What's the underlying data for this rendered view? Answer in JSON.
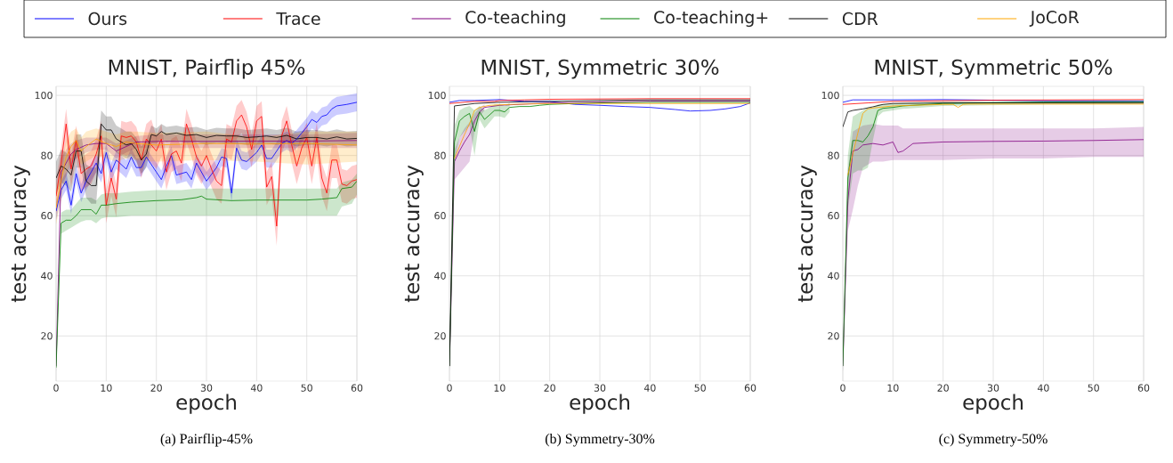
{
  "chart_data": [
    {
      "type": "line",
      "title": "MNIST, Pairflip 45%",
      "xlabel": "epoch",
      "ylabel": "test accuracy",
      "annotations": [
        "(a) Pairflip-45%"
      ],
      "xlim": [
        0,
        60
      ],
      "ylim": [
        5,
        103
      ],
      "xticks": [
        0,
        10,
        20,
        30,
        40,
        50,
        60
      ],
      "yticks": [
        20,
        40,
        60,
        80,
        100
      ],
      "grid": true,
      "legend": "top",
      "series": [
        {
          "name": "Ours",
          "color": "#0000ff",
          "x": [
            0,
            1,
            2,
            3,
            4,
            5,
            6,
            8,
            9,
            10,
            11,
            12,
            14,
            15,
            16,
            17,
            18,
            20,
            21,
            22,
            23,
            24,
            26,
            27,
            28,
            30,
            32,
            33,
            34,
            35,
            36,
            37,
            38,
            40,
            41,
            42,
            43,
            45,
            46,
            47,
            48,
            49,
            50,
            51,
            52,
            53,
            54,
            55,
            56,
            58,
            60
          ],
          "values": [
            61.5,
            68.5,
            71.5,
            63.5,
            74,
            67.5,
            71.5,
            77.5,
            74,
            81,
            74.5,
            78.5,
            75.5,
            79.5,
            76,
            76,
            79.5,
            74.5,
            72,
            76.5,
            80,
            73.5,
            74.5,
            72,
            77.5,
            71.5,
            76,
            79.5,
            79,
            67.5,
            82.5,
            78.5,
            78,
            81,
            83.5,
            79,
            79,
            84,
            85,
            84,
            85.5,
            87.5,
            89.5,
            92,
            91,
            93,
            93.5,
            95.5,
            96.5,
            97,
            97.7
          ],
          "lower": [
            58.5,
            65.5,
            68.5,
            60.5,
            71,
            64.5,
            68.5,
            74.5,
            71,
            78,
            71.5,
            75.5,
            72.5,
            76.5,
            73,
            73,
            76.5,
            71.5,
            69,
            73.5,
            77,
            70.5,
            71.5,
            69,
            74.5,
            68.5,
            73,
            76.5,
            76,
            64.5,
            79.5,
            75.5,
            75,
            78,
            80.5,
            76,
            76,
            81,
            82,
            81,
            82.5,
            84.5,
            86.5,
            89,
            88,
            90,
            90.5,
            92.5,
            93.5,
            94,
            94.7
          ],
          "upper": [
            64.5,
            71.5,
            74.5,
            66.5,
            77,
            70.5,
            74.5,
            80.5,
            77,
            84,
            77.5,
            81.5,
            78.5,
            82.5,
            79,
            79,
            82.5,
            77.5,
            75,
            79.5,
            83,
            76.5,
            77.5,
            75,
            80.5,
            74.5,
            79,
            82.5,
            82,
            70.5,
            85.5,
            81.5,
            81,
            84,
            86.5,
            82,
            82,
            87,
            88,
            87,
            88.5,
            90.5,
            92.5,
            95,
            94,
            96,
            96.5,
            98.5,
            99.5,
            100,
            100.7
          ]
        },
        {
          "name": "Trace",
          "color": "#ff0000",
          "x": [
            0,
            1,
            2,
            3,
            4,
            5,
            6,
            7,
            8,
            9,
            10,
            11,
            12,
            13,
            14,
            15,
            16,
            17,
            18,
            19,
            20,
            21,
            22,
            23,
            24,
            25,
            26,
            27,
            28,
            29,
            30,
            31,
            32,
            33,
            34,
            35,
            36,
            37,
            38,
            39,
            40,
            41,
            42,
            43,
            44,
            45,
            46,
            47,
            48,
            49,
            50,
            51,
            52,
            53,
            54,
            55,
            56,
            57,
            58,
            59,
            60
          ],
          "values": [
            66.5,
            77.5,
            90.5,
            75.5,
            85,
            74,
            75.5,
            76.5,
            80.5,
            86.5,
            63.5,
            72.5,
            65.5,
            86.5,
            86,
            86.5,
            84.5,
            78.5,
            85.5,
            83.5,
            81.5,
            85.5,
            74.5,
            80.5,
            81.5,
            77.5,
            90.5,
            85.5,
            79.5,
            76.5,
            80,
            75.5,
            71.5,
            70,
            85.5,
            84.5,
            91.5,
            93.5,
            89.5,
            82,
            91.5,
            93,
            69.5,
            73,
            56.5,
            86.5,
            91.5,
            83.5,
            76.5,
            82.5,
            86,
            76.5,
            86,
            72.5,
            67.5,
            78.5,
            78.5,
            70.5,
            70,
            71.5,
            72
          ],
          "lower": [
            60.5,
            71.5,
            84.5,
            69.5,
            79,
            68,
            69.5,
            70.5,
            74.5,
            80.5,
            57.5,
            66.5,
            59.5,
            80.5,
            80,
            80.5,
            78.5,
            72.5,
            79.5,
            77.5,
            75.5,
            79.5,
            68.5,
            74.5,
            75.5,
            71.5,
            84.5,
            79.5,
            73.5,
            70.5,
            74,
            69.5,
            65.5,
            64,
            79.5,
            78.5,
            85.5,
            87.5,
            83.5,
            76,
            85.5,
            87,
            63.5,
            67,
            50,
            80.5,
            85.5,
            77.5,
            70.5,
            76.5,
            80,
            70.5,
            80,
            66.5,
            61.5,
            72.5,
            72.5,
            64.5,
            64,
            65.5,
            66
          ],
          "upper": [
            71.5,
            82.5,
            95.5,
            80.5,
            90,
            79,
            80.5,
            81.5,
            85.5,
            91.5,
            68.5,
            77.5,
            70.5,
            91.5,
            91,
            91.5,
            89.5,
            83.5,
            90.5,
            92,
            86.5,
            90.5,
            79.5,
            85.5,
            86.5,
            82.5,
            95.5,
            90.5,
            84.5,
            81.5,
            85,
            80.5,
            76.5,
            75,
            90.5,
            89.5,
            96.5,
            98.5,
            94.5,
            87,
            96.5,
            98,
            74.5,
            78,
            61.5,
            91.5,
            96.5,
            88.5,
            81.5,
            87.5,
            91,
            81.5,
            91,
            77.5,
            72.5,
            83.5,
            83.5,
            75.5,
            75,
            76.5,
            77
          ]
        },
        {
          "name": "Co-teaching",
          "color": "#800080",
          "x": [
            0,
            1,
            2,
            3,
            4,
            6,
            8,
            10,
            12,
            14,
            16,
            20,
            30,
            40,
            50,
            60
          ],
          "values": [
            10,
            74.5,
            77.5,
            80.5,
            82,
            83.5,
            84,
            84,
            81.5,
            83,
            84.5,
            84.7,
            84.7,
            84.8,
            84.8,
            85
          ],
          "lower": [
            8,
            70,
            73,
            77,
            79,
            81,
            82,
            82,
            79,
            81,
            82.5,
            82.5,
            82.5,
            82.5,
            82.5,
            82.5
          ],
          "upper": [
            12,
            79,
            82,
            84,
            85,
            86,
            86,
            86,
            84,
            85,
            86.5,
            87,
            87,
            87,
            87,
            87.5
          ]
        },
        {
          "name": "Co-teaching+",
          "color": "#008000",
          "x": [
            0,
            1,
            2,
            3,
            4,
            5,
            6,
            7,
            8,
            9,
            10,
            12,
            15,
            20,
            25,
            28,
            29,
            30,
            35,
            40,
            45,
            50,
            53,
            56,
            57,
            59,
            60
          ],
          "values": [
            9.5,
            57.5,
            58.5,
            58.5,
            60,
            62,
            62,
            62,
            60.5,
            63.5,
            63.5,
            64,
            64.5,
            65,
            65.3,
            66,
            66.5,
            65.5,
            65,
            65.2,
            65.2,
            65.2,
            65.5,
            66,
            69,
            69.5,
            71.5
          ],
          "lower": [
            8,
            54,
            55,
            56,
            57,
            58,
            58.5,
            58.5,
            57.5,
            59,
            59.5,
            59.5,
            60,
            60,
            60,
            60,
            60,
            60,
            60,
            60,
            60,
            60,
            60,
            60,
            63,
            64,
            67
          ],
          "upper": [
            11,
            61,
            62,
            62,
            64,
            66,
            66,
            66,
            65,
            67,
            67.5,
            67.5,
            68,
            68.5,
            68.5,
            69,
            69,
            69,
            69,
            69,
            69,
            69,
            69,
            69,
            71,
            72,
            74
          ]
        },
        {
          "name": "CDR",
          "color": "#000000",
          "x": [
            0,
            1,
            2,
            3,
            4,
            5,
            6,
            7,
            8,
            9,
            10,
            11,
            12,
            13,
            14,
            15,
            16,
            17,
            18,
            19,
            20,
            21,
            22,
            24,
            26,
            28,
            30,
            32,
            34,
            36,
            38,
            40,
            42,
            44,
            46,
            48,
            50,
            52,
            54,
            56,
            58,
            60
          ],
          "values": [
            72.5,
            76.5,
            75.5,
            73.5,
            81.5,
            81.5,
            71.5,
            70,
            70,
            90.5,
            88.5,
            88.5,
            85.5,
            84.5,
            83.5,
            84,
            82,
            78.5,
            80.5,
            87,
            86.5,
            88,
            87,
            87.5,
            86.7,
            87,
            86,
            86.7,
            86.5,
            86.5,
            86,
            86.2,
            86.5,
            86,
            86.7,
            85.5,
            86,
            86,
            85.5,
            86.2,
            85.5,
            85.7
          ],
          "lower": [
            67,
            71,
            70,
            68,
            76,
            76,
            66,
            64,
            64,
            86,
            84,
            84,
            81,
            80,
            79,
            80,
            78,
            74,
            76,
            84,
            84,
            85.5,
            84.5,
            85,
            84.2,
            84.5,
            83.5,
            84.2,
            84,
            84,
            83.5,
            83.7,
            84,
            83.5,
            84.2,
            83,
            83.5,
            83.5,
            83,
            83.7,
            83,
            83.2
          ],
          "upper": [
            78,
            82,
            81,
            79,
            87,
            87,
            77,
            76,
            76,
            95,
            93,
            93,
            90,
            89,
            88,
            88,
            86,
            83,
            85,
            90,
            89,
            90.5,
            89.5,
            90,
            89.2,
            89.5,
            88.5,
            89.2,
            89,
            89,
            88.5,
            88.7,
            89,
            88.5,
            89.2,
            88,
            88.5,
            88.5,
            88,
            88.7,
            88,
            88.2
          ]
        },
        {
          "name": "JoCoR",
          "color": "#ffa500",
          "x": [
            0,
            1,
            2,
            3,
            4,
            5,
            6,
            8,
            10,
            12,
            14,
            16,
            20,
            30,
            40,
            50,
            60
          ],
          "values": [
            62.5,
            71.5,
            79.5,
            83,
            85,
            81.5,
            83,
            85.5,
            84,
            83,
            84.5,
            84,
            83.5,
            84,
            83.8,
            84,
            83.5
          ],
          "lower": [
            57,
            65,
            74,
            78,
            80,
            77,
            78,
            80,
            79,
            78,
            79,
            78.5,
            78,
            78.5,
            78,
            77,
            78
          ],
          "upper": [
            68,
            77,
            85,
            88,
            89,
            86,
            88,
            89,
            88,
            87,
            88,
            88,
            87.5,
            88,
            86,
            88,
            88
          ]
        }
      ]
    },
    {
      "type": "line",
      "title": "MNIST, Symmetric 30%",
      "xlabel": "epoch",
      "ylabel": "test accuracy",
      "annotations": [
        "(b) Symmetry-30%"
      ],
      "xlim": [
        0,
        60
      ],
      "ylim": [
        5,
        103
      ],
      "xticks": [
        0,
        10,
        20,
        30,
        40,
        50,
        60
      ],
      "yticks": [
        20,
        40,
        60,
        80,
        100
      ],
      "grid": true,
      "series": [
        {
          "color": "#0000ff",
          "x": [
            0,
            2,
            5,
            10,
            15,
            20,
            25,
            30,
            35,
            40,
            45,
            48,
            52,
            55,
            58,
            60
          ],
          "values": [
            97.7,
            98.3,
            98.3,
            98.6,
            98,
            98,
            97,
            96.7,
            96.3,
            96,
            95.3,
            94.8,
            95,
            95.5,
            96.3,
            97.5
          ]
        },
        {
          "color": "#ff0000",
          "x": [
            0,
            5,
            9,
            10,
            15,
            20,
            30,
            40,
            50,
            60
          ],
          "values": [
            97.3,
            98,
            98,
            98.3,
            98.5,
            98.7,
            98.8,
            98.9,
            98.9,
            98.9
          ]
        },
        {
          "color": "#800080",
          "x": [
            0,
            1,
            2,
            3,
            4,
            5,
            6,
            7,
            10,
            20,
            40,
            60
          ],
          "values": [
            10,
            78,
            81.5,
            84.5,
            87,
            91.5,
            94.5,
            96,
            96.7,
            97.5,
            98.1,
            98.1
          ],
          "lower": [
            8,
            72,
            74,
            76,
            78,
            88,
            93,
            95,
            null,
            null,
            null,
            null
          ],
          "upper": [
            12,
            82,
            86,
            89,
            91,
            94,
            96,
            97,
            null,
            null,
            null,
            null
          ]
        },
        {
          "color": "#008000",
          "x": [
            0,
            1,
            2,
            3,
            4,
            5,
            6,
            7,
            8,
            9,
            10,
            11,
            12,
            14,
            16,
            18,
            20,
            25,
            30,
            40,
            50,
            60
          ],
          "values": [
            10,
            84.5,
            91.5,
            93,
            94,
            88,
            94.5,
            92,
            93.5,
            95,
            95,
            94.5,
            96,
            96.3,
            96.3,
            96.7,
            97,
            97.3,
            97.5,
            97.7,
            97.7,
            97.7
          ],
          "lower": [
            8,
            78,
            86,
            88,
            90,
            80,
            92,
            89,
            91,
            93,
            93,
            92.5,
            94.5,
            null,
            null,
            null,
            null,
            null,
            null,
            null,
            null,
            null
          ],
          "upper": [
            12,
            90,
            95,
            96,
            96.5,
            95,
            96.5,
            95,
            96,
            97,
            97,
            96.5,
            97.5,
            null,
            null,
            null,
            null,
            null,
            null,
            null,
            null,
            null
          ]
        },
        {
          "color": "#000000",
          "x": [
            0,
            1,
            5,
            10,
            20,
            30,
            40,
            50,
            60
          ],
          "values": [
            10,
            96.5,
            97.3,
            97.7,
            98,
            98.3,
            98.5,
            98.5,
            98.5
          ]
        },
        {
          "color": "#ffa500",
          "x": [
            1,
            2,
            3,
            4,
            5,
            6,
            8,
            12,
            20,
            40,
            60
          ],
          "values": [
            79,
            83,
            87,
            90.5,
            95,
            96,
            96.7,
            97,
            97.3,
            97.3,
            97.3
          ]
        }
      ]
    },
    {
      "type": "line",
      "title": "MNIST, Symmetric 50%",
      "xlabel": "epoch",
      "ylabel": "test accuracy",
      "annotations": [
        "(c) Symmetry-50%"
      ],
      "xlim": [
        0,
        60
      ],
      "ylim": [
        5,
        103
      ],
      "xticks": [
        0,
        10,
        20,
        30,
        40,
        50,
        60
      ],
      "yticks": [
        20,
        40,
        60,
        80,
        100
      ],
      "grid": true,
      "series": [
        {
          "color": "#0000ff",
          "x": [
            0,
            2,
            10,
            20,
            40,
            60
          ],
          "values": [
            97.7,
            98.5,
            98.5,
            98.6,
            98.2,
            98.1
          ]
        },
        {
          "color": "#ff0000",
          "x": [
            0,
            5,
            10,
            30,
            60
          ],
          "values": [
            97,
            97.5,
            98,
            98.4,
            98.6
          ]
        },
        {
          "color": "#800080",
          "x": [
            0,
            1,
            2,
            3,
            4,
            6,
            8,
            10,
            11,
            12,
            14,
            20,
            30,
            40,
            50,
            60
          ],
          "values": [
            10,
            65,
            81.5,
            82,
            83.5,
            84,
            83.5,
            84.5,
            81,
            81.5,
            84,
            84.5,
            84.7,
            84.8,
            85,
            85.3
          ],
          "lower": [
            8,
            55,
            62,
            70,
            76,
            78,
            78,
            78.5,
            78.5,
            78.5,
            78.5,
            78.5,
            79,
            79,
            79.5,
            79.5
          ],
          "upper": [
            12,
            75,
            88,
            89,
            90,
            90.5,
            90,
            90,
            90,
            89,
            89,
            89,
            89,
            89,
            89,
            89.5
          ]
        },
        {
          "color": "#008000",
          "x": [
            0,
            1,
            2,
            3,
            4,
            5,
            6,
            7,
            8,
            10,
            12,
            20,
            40,
            60
          ],
          "values": [
            10,
            72.5,
            85,
            85,
            84.5,
            86.5,
            89.5,
            95,
            95.7,
            96,
            96.5,
            97.3,
            97.8,
            97.9
          ],
          "lower": [
            8,
            62,
            74,
            75,
            75,
            76,
            85,
            93,
            94.5,
            95,
            95.5,
            96.5,
            97,
            97.2
          ],
          "upper": [
            12,
            80,
            93,
            94,
            95,
            96,
            96,
            97,
            97,
            97.2,
            97.5,
            98,
            98,
            98.2
          ]
        },
        {
          "color": "#000000",
          "x": [
            0,
            1,
            2,
            4,
            6,
            8,
            10,
            20,
            40,
            60
          ],
          "values": [
            89.5,
            94.5,
            95,
            95.5,
            96.2,
            97,
            97.3,
            97.5,
            97.5,
            97.5
          ]
        },
        {
          "color": "#ffa500",
          "x": [
            1,
            2,
            3,
            4,
            5,
            6,
            10,
            20,
            22,
            23,
            24,
            25,
            40,
            60
          ],
          "values": [
            73.5,
            80.5,
            87.5,
            94,
            95.5,
            95.8,
            96.5,
            97,
            97,
            96,
            97,
            97.1,
            97.1,
            97.1
          ]
        }
      ]
    }
  ]
}
